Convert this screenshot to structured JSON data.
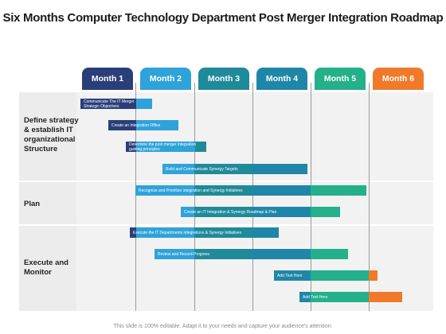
{
  "title": "Six Months Computer Technology Department Post Merger Integration Roadmap",
  "months": [
    {
      "label": "Month 1",
      "color": "#2a3f7a"
    },
    {
      "label": "Month 2",
      "color": "#2fa3d9"
    },
    {
      "label": "Month 3",
      "color": "#1f8a9a"
    },
    {
      "label": "Month 4",
      "color": "#1f86a8"
    },
    {
      "label": "Month 5",
      "color": "#23b08a"
    },
    {
      "label": "Month 6",
      "color": "#f07a2a"
    }
  ],
  "rows": [
    {
      "label": "Define strategy & establish IT organizational Structure"
    },
    {
      "label": "Plan"
    },
    {
      "label": "Execute and Monitor"
    }
  ],
  "tasks": [
    {
      "text": "Communicate The IT Merger Strategic Objectives"
    },
    {
      "text": "Create an Integration Office"
    },
    {
      "text": "Determine the post merger integration guiding principles"
    },
    {
      "text": "Build and Communicate Synergy Targets"
    },
    {
      "text": "Recognize and Prioritize integration and Synergy Initiatives"
    },
    {
      "text": "Create an IT Integration & Synergy Roadmap & Plan"
    },
    {
      "text": "Execute the IT Departments integrations & Synergy Initiatives"
    },
    {
      "text": "Review and Record Progress"
    },
    {
      "text": "Add Text Here"
    },
    {
      "text": "Add Text Here"
    }
  ],
  "footer": "This slide is 100% editable. Adapt it to your needs and capture your audience's attention."
}
